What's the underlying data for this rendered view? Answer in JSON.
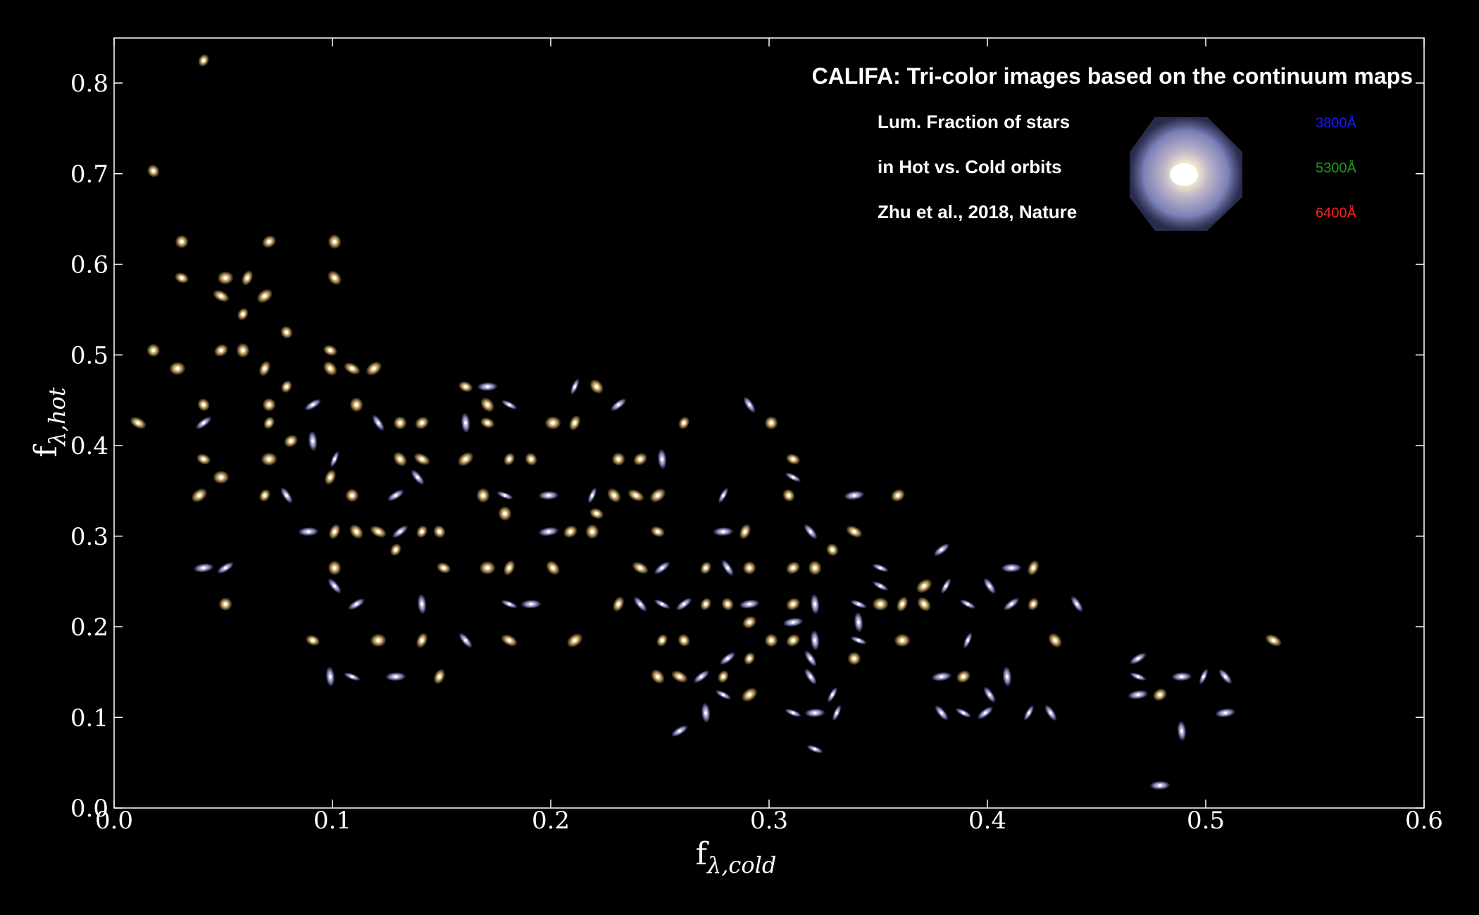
{
  "chart_data": {
    "type": "scatter",
    "title": "CALIFA: Tri-color images based on the continuum maps",
    "info_lines": [
      "Lum. Fraction of stars",
      "in Hot vs. Cold orbits",
      "Zhu et al., 2018, Nature"
    ],
    "wavelengths": [
      {
        "label": "3800Å",
        "color": "#1a1aff"
      },
      {
        "label": "5300Å",
        "color": "#1f9a1f"
      },
      {
        "label": "6400Å",
        "color": "#ff2020"
      }
    ],
    "xlabel_main": "f",
    "xlabel_sub": "λ,cold",
    "ylabel_main": "f",
    "ylabel_sub": "λ,hot",
    "xlim": [
      0.0,
      0.6
    ],
    "ylim": [
      0.0,
      0.85
    ],
    "xticks": [
      "0.0",
      "0.1",
      "0.2",
      "0.3",
      "0.4",
      "0.5",
      "0.6"
    ],
    "yticks": [
      "0.0",
      "0.1",
      "0.2",
      "0.3",
      "0.4",
      "0.5",
      "0.6",
      "0.7",
      "0.8"
    ],
    "marker": "galaxy-image",
    "points": [
      [
        0.041,
        0.825,
        "e"
      ],
      [
        0.018,
        0.703,
        "e"
      ],
      [
        0.031,
        0.625,
        "e"
      ],
      [
        0.071,
        0.625,
        "e"
      ],
      [
        0.101,
        0.625,
        "e"
      ],
      [
        0.031,
        0.585,
        "e"
      ],
      [
        0.051,
        0.585,
        "e"
      ],
      [
        0.061,
        0.585,
        "e"
      ],
      [
        0.101,
        0.585,
        "e"
      ],
      [
        0.049,
        0.565,
        "e"
      ],
      [
        0.069,
        0.565,
        "e"
      ],
      [
        0.059,
        0.545,
        "e"
      ],
      [
        0.079,
        0.525,
        "e"
      ],
      [
        0.018,
        0.505,
        "e"
      ],
      [
        0.049,
        0.505,
        "e"
      ],
      [
        0.059,
        0.505,
        "e"
      ],
      [
        0.099,
        0.505,
        "e"
      ],
      [
        0.029,
        0.485,
        "e"
      ],
      [
        0.069,
        0.485,
        "e"
      ],
      [
        0.099,
        0.485,
        "e"
      ],
      [
        0.109,
        0.485,
        "e"
      ],
      [
        0.119,
        0.485,
        "e"
      ],
      [
        0.079,
        0.465,
        "e"
      ],
      [
        0.041,
        0.445,
        "e"
      ],
      [
        0.071,
        0.445,
        "e"
      ],
      [
        0.091,
        0.445,
        "s"
      ],
      [
        0.111,
        0.445,
        "e"
      ],
      [
        0.161,
        0.465,
        "e"
      ],
      [
        0.171,
        0.465,
        "s"
      ],
      [
        0.211,
        0.465,
        "s"
      ],
      [
        0.221,
        0.465,
        "e"
      ],
      [
        0.011,
        0.425,
        "e"
      ],
      [
        0.041,
        0.425,
        "s"
      ],
      [
        0.071,
        0.425,
        "e"
      ],
      [
        0.121,
        0.425,
        "s"
      ],
      [
        0.131,
        0.425,
        "e"
      ],
      [
        0.141,
        0.425,
        "e"
      ],
      [
        0.161,
        0.425,
        "s"
      ],
      [
        0.171,
        0.425,
        "e"
      ],
      [
        0.201,
        0.425,
        "e"
      ],
      [
        0.211,
        0.425,
        "e"
      ],
      [
        0.171,
        0.445,
        "e"
      ],
      [
        0.181,
        0.445,
        "s"
      ],
      [
        0.231,
        0.445,
        "s"
      ],
      [
        0.261,
        0.425,
        "e"
      ],
      [
        0.291,
        0.445,
        "s"
      ],
      [
        0.301,
        0.425,
        "e"
      ],
      [
        0.081,
        0.405,
        "e"
      ],
      [
        0.091,
        0.405,
        "s"
      ],
      [
        0.041,
        0.385,
        "e"
      ],
      [
        0.071,
        0.385,
        "e"
      ],
      [
        0.101,
        0.385,
        "s"
      ],
      [
        0.131,
        0.385,
        "e"
      ],
      [
        0.141,
        0.385,
        "e"
      ],
      [
        0.161,
        0.385,
        "e"
      ],
      [
        0.181,
        0.385,
        "e"
      ],
      [
        0.191,
        0.385,
        "e"
      ],
      [
        0.231,
        0.385,
        "e"
      ],
      [
        0.241,
        0.385,
        "e"
      ],
      [
        0.251,
        0.385,
        "s"
      ],
      [
        0.311,
        0.385,
        "e"
      ],
      [
        0.049,
        0.365,
        "e"
      ],
      [
        0.099,
        0.365,
        "e"
      ],
      [
        0.139,
        0.365,
        "s"
      ],
      [
        0.311,
        0.365,
        "s"
      ],
      [
        0.039,
        0.345,
        "e"
      ],
      [
        0.069,
        0.345,
        "e"
      ],
      [
        0.079,
        0.345,
        "s"
      ],
      [
        0.109,
        0.345,
        "e"
      ],
      [
        0.129,
        0.345,
        "s"
      ],
      [
        0.169,
        0.345,
        "e"
      ],
      [
        0.179,
        0.345,
        "s"
      ],
      [
        0.199,
        0.345,
        "s"
      ],
      [
        0.219,
        0.345,
        "s"
      ],
      [
        0.229,
        0.345,
        "e"
      ],
      [
        0.239,
        0.345,
        "e"
      ],
      [
        0.249,
        0.345,
        "e"
      ],
      [
        0.279,
        0.345,
        "s"
      ],
      [
        0.309,
        0.345,
        "e"
      ],
      [
        0.339,
        0.345,
        "s"
      ],
      [
        0.359,
        0.345,
        "e"
      ],
      [
        0.179,
        0.325,
        "e"
      ],
      [
        0.221,
        0.325,
        "e"
      ],
      [
        0.089,
        0.305,
        "s"
      ],
      [
        0.101,
        0.305,
        "e"
      ],
      [
        0.111,
        0.305,
        "e"
      ],
      [
        0.121,
        0.305,
        "e"
      ],
      [
        0.131,
        0.305,
        "s"
      ],
      [
        0.141,
        0.305,
        "e"
      ],
      [
        0.149,
        0.305,
        "e"
      ],
      [
        0.199,
        0.305,
        "s"
      ],
      [
        0.209,
        0.305,
        "e"
      ],
      [
        0.219,
        0.305,
        "e"
      ],
      [
        0.249,
        0.305,
        "e"
      ],
      [
        0.279,
        0.305,
        "s"
      ],
      [
        0.289,
        0.305,
        "e"
      ],
      [
        0.319,
        0.305,
        "s"
      ],
      [
        0.339,
        0.305,
        "e"
      ],
      [
        0.379,
        0.285,
        "s"
      ],
      [
        0.129,
        0.285,
        "e"
      ],
      [
        0.329,
        0.285,
        "e"
      ],
      [
        0.041,
        0.265,
        "s"
      ],
      [
        0.051,
        0.265,
        "s"
      ],
      [
        0.101,
        0.265,
        "e"
      ],
      [
        0.151,
        0.265,
        "e"
      ],
      [
        0.171,
        0.265,
        "e"
      ],
      [
        0.181,
        0.265,
        "e"
      ],
      [
        0.201,
        0.265,
        "e"
      ],
      [
        0.241,
        0.265,
        "e"
      ],
      [
        0.251,
        0.265,
        "s"
      ],
      [
        0.271,
        0.265,
        "e"
      ],
      [
        0.281,
        0.265,
        "s"
      ],
      [
        0.291,
        0.265,
        "e"
      ],
      [
        0.311,
        0.265,
        "e"
      ],
      [
        0.321,
        0.265,
        "e"
      ],
      [
        0.351,
        0.265,
        "s"
      ],
      [
        0.411,
        0.265,
        "s"
      ],
      [
        0.421,
        0.265,
        "e"
      ],
      [
        0.101,
        0.245,
        "s"
      ],
      [
        0.351,
        0.245,
        "s"
      ],
      [
        0.371,
        0.245,
        "e"
      ],
      [
        0.381,
        0.245,
        "s"
      ],
      [
        0.401,
        0.245,
        "s"
      ],
      [
        0.051,
        0.225,
        "e"
      ],
      [
        0.111,
        0.225,
        "s"
      ],
      [
        0.141,
        0.225,
        "s"
      ],
      [
        0.181,
        0.225,
        "s"
      ],
      [
        0.191,
        0.225,
        "s"
      ],
      [
        0.231,
        0.225,
        "e"
      ],
      [
        0.241,
        0.225,
        "s"
      ],
      [
        0.251,
        0.225,
        "s"
      ],
      [
        0.261,
        0.225,
        "s"
      ],
      [
        0.271,
        0.225,
        "e"
      ],
      [
        0.281,
        0.225,
        "e"
      ],
      [
        0.291,
        0.225,
        "s"
      ],
      [
        0.311,
        0.225,
        "e"
      ],
      [
        0.321,
        0.225,
        "s"
      ],
      [
        0.341,
        0.225,
        "s"
      ],
      [
        0.351,
        0.225,
        "e"
      ],
      [
        0.361,
        0.225,
        "e"
      ],
      [
        0.371,
        0.225,
        "e"
      ],
      [
        0.391,
        0.225,
        "s"
      ],
      [
        0.411,
        0.225,
        "s"
      ],
      [
        0.421,
        0.225,
        "e"
      ],
      [
        0.441,
        0.225,
        "s"
      ],
      [
        0.311,
        0.205,
        "s"
      ],
      [
        0.291,
        0.205,
        "e"
      ],
      [
        0.341,
        0.205,
        "s"
      ],
      [
        0.091,
        0.185,
        "e"
      ],
      [
        0.121,
        0.185,
        "e"
      ],
      [
        0.141,
        0.185,
        "e"
      ],
      [
        0.161,
        0.185,
        "s"
      ],
      [
        0.181,
        0.185,
        "e"
      ],
      [
        0.211,
        0.185,
        "e"
      ],
      [
        0.251,
        0.185,
        "e"
      ],
      [
        0.261,
        0.185,
        "e"
      ],
      [
        0.301,
        0.185,
        "e"
      ],
      [
        0.311,
        0.185,
        "e"
      ],
      [
        0.321,
        0.185,
        "s"
      ],
      [
        0.341,
        0.185,
        "s"
      ],
      [
        0.361,
        0.185,
        "e"
      ],
      [
        0.391,
        0.185,
        "s"
      ],
      [
        0.431,
        0.185,
        "e"
      ],
      [
        0.531,
        0.185,
        "e"
      ],
      [
        0.281,
        0.165,
        "s"
      ],
      [
        0.291,
        0.165,
        "e"
      ],
      [
        0.319,
        0.165,
        "s"
      ],
      [
        0.339,
        0.165,
        "e"
      ],
      [
        0.469,
        0.165,
        "s"
      ],
      [
        0.099,
        0.145,
        "s"
      ],
      [
        0.109,
        0.145,
        "s"
      ],
      [
        0.129,
        0.145,
        "s"
      ],
      [
        0.149,
        0.145,
        "e"
      ],
      [
        0.249,
        0.145,
        "e"
      ],
      [
        0.259,
        0.145,
        "e"
      ],
      [
        0.269,
        0.145,
        "s"
      ],
      [
        0.279,
        0.145,
        "e"
      ],
      [
        0.319,
        0.145,
        "s"
      ],
      [
        0.379,
        0.145,
        "s"
      ],
      [
        0.389,
        0.145,
        "e"
      ],
      [
        0.409,
        0.145,
        "s"
      ],
      [
        0.469,
        0.145,
        "s"
      ],
      [
        0.489,
        0.145,
        "s"
      ],
      [
        0.499,
        0.145,
        "s"
      ],
      [
        0.509,
        0.145,
        "s"
      ],
      [
        0.279,
        0.125,
        "s"
      ],
      [
        0.291,
        0.125,
        "e"
      ],
      [
        0.329,
        0.125,
        "s"
      ],
      [
        0.401,
        0.125,
        "s"
      ],
      [
        0.469,
        0.125,
        "s"
      ],
      [
        0.479,
        0.125,
        "e"
      ],
      [
        0.271,
        0.105,
        "s"
      ],
      [
        0.311,
        0.105,
        "s"
      ],
      [
        0.321,
        0.105,
        "s"
      ],
      [
        0.331,
        0.105,
        "s"
      ],
      [
        0.379,
        0.105,
        "s"
      ],
      [
        0.389,
        0.105,
        "s"
      ],
      [
        0.399,
        0.105,
        "s"
      ],
      [
        0.419,
        0.105,
        "s"
      ],
      [
        0.429,
        0.105,
        "s"
      ],
      [
        0.509,
        0.105,
        "s"
      ],
      [
        0.259,
        0.085,
        "s"
      ],
      [
        0.489,
        0.085,
        "s"
      ],
      [
        0.321,
        0.065,
        "s"
      ],
      [
        0.479,
        0.025,
        "s"
      ]
    ]
  }
}
